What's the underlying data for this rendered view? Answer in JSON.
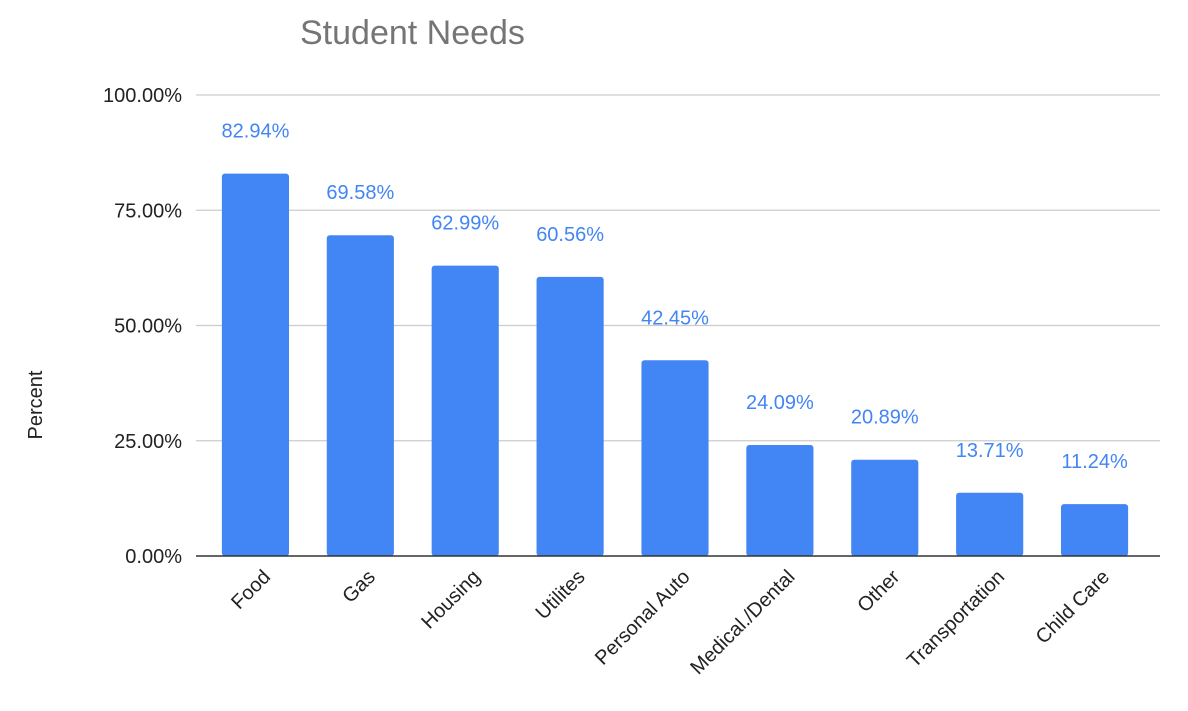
{
  "chart_data": {
    "type": "bar",
    "title": "Student Needs",
    "ylabel": "Percent",
    "xlabel": "",
    "categories": [
      "Food",
      "Gas",
      "Housing",
      "Utilites",
      "Personal Auto",
      "Medical./Dental",
      "Other",
      "Transportation",
      "Child Care"
    ],
    "values": [
      82.94,
      69.58,
      62.99,
      60.56,
      42.45,
      24.09,
      20.89,
      13.71,
      11.24
    ],
    "data_labels": [
      "82.94%",
      "69.58%",
      "62.99%",
      "60.56%",
      "42.45%",
      "24.09%",
      "20.89%",
      "13.71%",
      "11.24%"
    ],
    "yticks": [
      0,
      25,
      50,
      75,
      100
    ],
    "ytick_labels": [
      "0.00%",
      "25.00%",
      "50.00%",
      "75.00%",
      "100.00%"
    ],
    "ylim": [
      0,
      100
    ],
    "grid": true,
    "legend": "none",
    "colors": {
      "bar": "#4285f4",
      "data_label": "#4285f4"
    }
  }
}
